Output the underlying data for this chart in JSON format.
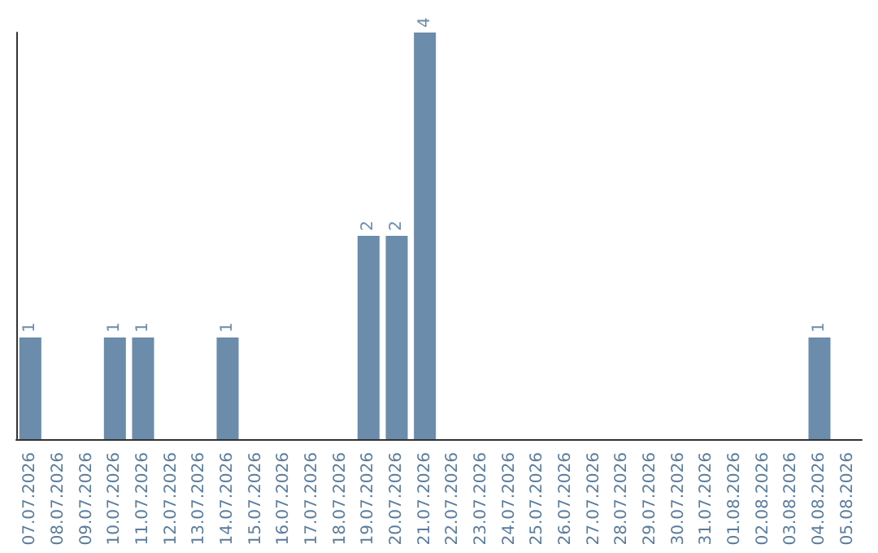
{
  "chart_data": {
    "type": "bar",
    "categories": [
      "07.07.2026",
      "08.07.2026",
      "09.07.2026",
      "10.07.2026",
      "11.07.2026",
      "12.07.2026",
      "13.07.2026",
      "14.07.2026",
      "15.07.2026",
      "16.07.2026",
      "17.07.2026",
      "18.07.2026",
      "19.07.2026",
      "20.07.2026",
      "21.07.2026",
      "22.07.2026",
      "23.07.2026",
      "24.07.2026",
      "25.07.2026",
      "26.07.2026",
      "27.07.2026",
      "28.07.2026",
      "29.07.2026",
      "30.07.2026",
      "31.07.2026",
      "01.08.2026",
      "02.08.2026",
      "03.08.2026",
      "04.08.2026",
      "05.08.2026"
    ],
    "values": [
      1,
      0,
      0,
      1,
      1,
      0,
      0,
      1,
      0,
      0,
      0,
      0,
      2,
      2,
      4,
      0,
      0,
      0,
      0,
      0,
      0,
      0,
      0,
      0,
      0,
      0,
      0,
      0,
      1,
      0
    ],
    "value_labels": [
      "1",
      null,
      null,
      "1",
      "1",
      null,
      null,
      "1",
      null,
      null,
      null,
      null,
      "2",
      "2",
      "4",
      null,
      null,
      null,
      null,
      null,
      null,
      null,
      null,
      null,
      null,
      null,
      null,
      null,
      "1",
      null
    ],
    "color": "#6b8cab",
    "ylim": [
      0,
      4
    ],
    "grid": false
  }
}
